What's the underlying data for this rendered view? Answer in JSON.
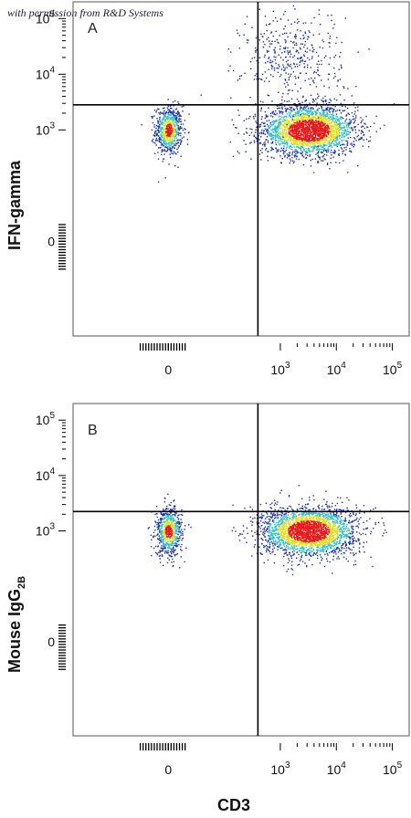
{
  "watermark": "with permission from R&D Systems",
  "chart_data": [
    {
      "type": "scatter",
      "panel_label": "A",
      "xlabel": "CD3",
      "ylabel": "IFN-gamma",
      "ylabel_subscript": "",
      "x_scale": "biexponential",
      "y_scale": "biexponential",
      "xlim": [
        -0.7,
        5.3
      ],
      "ylim": [
        -0.7,
        5.3
      ],
      "x_ticks": [
        {
          "label": "0",
          "exp": ""
        },
        {
          "label": "10",
          "exp": "3"
        },
        {
          "label": "10",
          "exp": "4"
        },
        {
          "label": "10",
          "exp": "5"
        }
      ],
      "y_ticks": [
        {
          "label": "0",
          "exp": ""
        },
        {
          "label": "10",
          "exp": "3"
        },
        {
          "label": "10",
          "exp": "4"
        },
        {
          "label": "10",
          "exp": "5"
        }
      ],
      "quadrant_gate": {
        "x": 2.6,
        "y": 3.45
      },
      "populations": [
        {
          "name": "",
          "x_center": 1.0,
          "y_center": 3.0,
          "x_spread": 0.12,
          "y_spread": 0.22,
          "density": "high"
        },
        {
          "name": "",
          "x_center": 3.5,
          "y_center": 3.0,
          "x_spread": 0.42,
          "y_spread": 0.22,
          "density": "very high"
        },
        {
          "name": "",
          "x_center": 3.2,
          "y_center": 4.3,
          "x_spread": 0.45,
          "y_spread": 0.45,
          "density": "low"
        }
      ]
    },
    {
      "type": "scatter",
      "panel_label": "B",
      "xlabel": "CD3",
      "ylabel": "Mouse IgG",
      "ylabel_subscript": "2B",
      "x_scale": "biexponential",
      "y_scale": "biexponential",
      "xlim": [
        -0.7,
        5.3
      ],
      "ylim": [
        -0.7,
        5.3
      ],
      "x_ticks": [
        {
          "label": "0",
          "exp": ""
        },
        {
          "label": "10",
          "exp": "3"
        },
        {
          "label": "10",
          "exp": "4"
        },
        {
          "label": "10",
          "exp": "5"
        }
      ],
      "y_ticks": [
        {
          "label": "0",
          "exp": ""
        },
        {
          "label": "10",
          "exp": "3"
        },
        {
          "label": "10",
          "exp": "4"
        },
        {
          "label": "10",
          "exp": "5"
        }
      ],
      "quadrant_gate": {
        "x": 2.6,
        "y": 3.35
      },
      "populations": [
        {
          "name": "",
          "x_center": 1.0,
          "y_center": 3.0,
          "x_spread": 0.12,
          "y_spread": 0.22,
          "density": "high"
        },
        {
          "name": "",
          "x_center": 3.5,
          "y_center": 3.0,
          "x_spread": 0.42,
          "y_spread": 0.22,
          "density": "very high"
        }
      ]
    }
  ],
  "colors": {
    "axis": "#000000",
    "density_low": "#1a2fb8",
    "density_mid": "#2fc2c8",
    "density_high": "#e0e020",
    "density_peak": "#e81818"
  }
}
